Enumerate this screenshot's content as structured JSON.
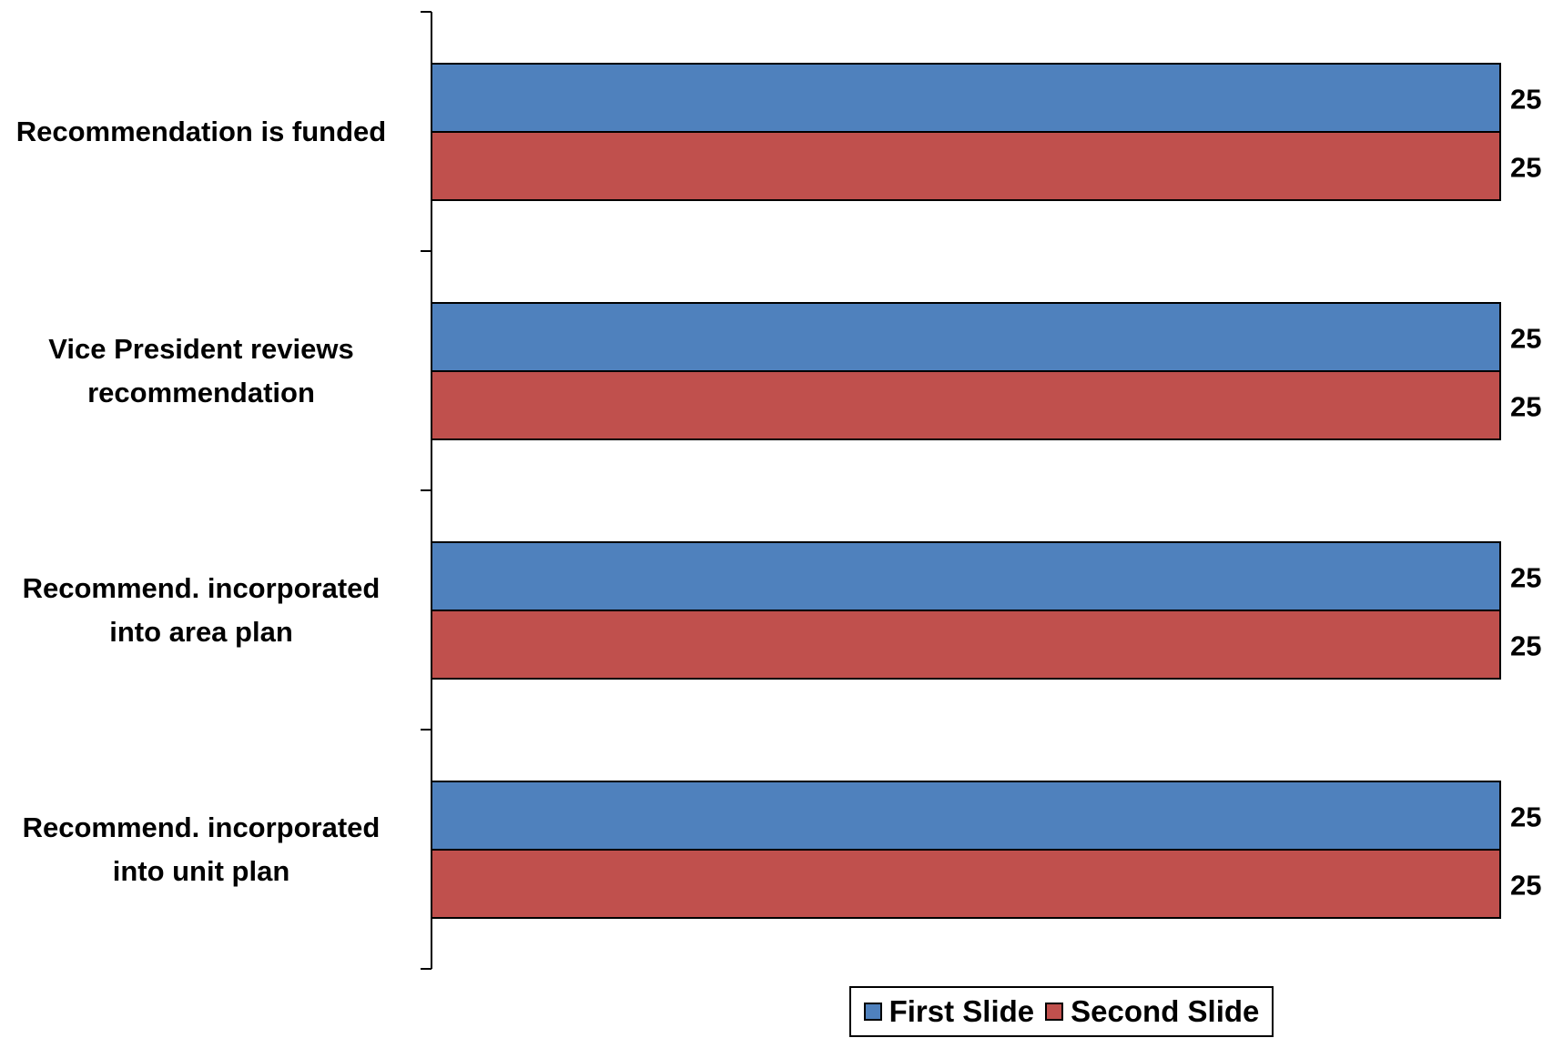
{
  "chart_data": {
    "type": "bar",
    "orientation": "horizontal",
    "categories": [
      "Recommendation is funded",
      "Vice President reviews recommendation",
      "Recommend. incorporated into area plan",
      "Recommend. incorporated into unit plan"
    ],
    "category_lines": [
      [
        "Recommendation is funded"
      ],
      [
        "Vice President reviews",
        "recommendation"
      ],
      [
        "Recommend. incorporated",
        "into area plan"
      ],
      [
        "Recommend. incorporated",
        "into unit plan"
      ]
    ],
    "series": [
      {
        "name": "First Slide",
        "color": "#4F81BD",
        "values": [
          25,
          25,
          25,
          25
        ]
      },
      {
        "name": "Second Slide",
        "color": "#C0504D",
        "values": [
          25,
          25,
          25,
          25
        ]
      }
    ],
    "xlim": [
      0,
      25
    ],
    "grid": false,
    "legend_position": "bottom"
  }
}
